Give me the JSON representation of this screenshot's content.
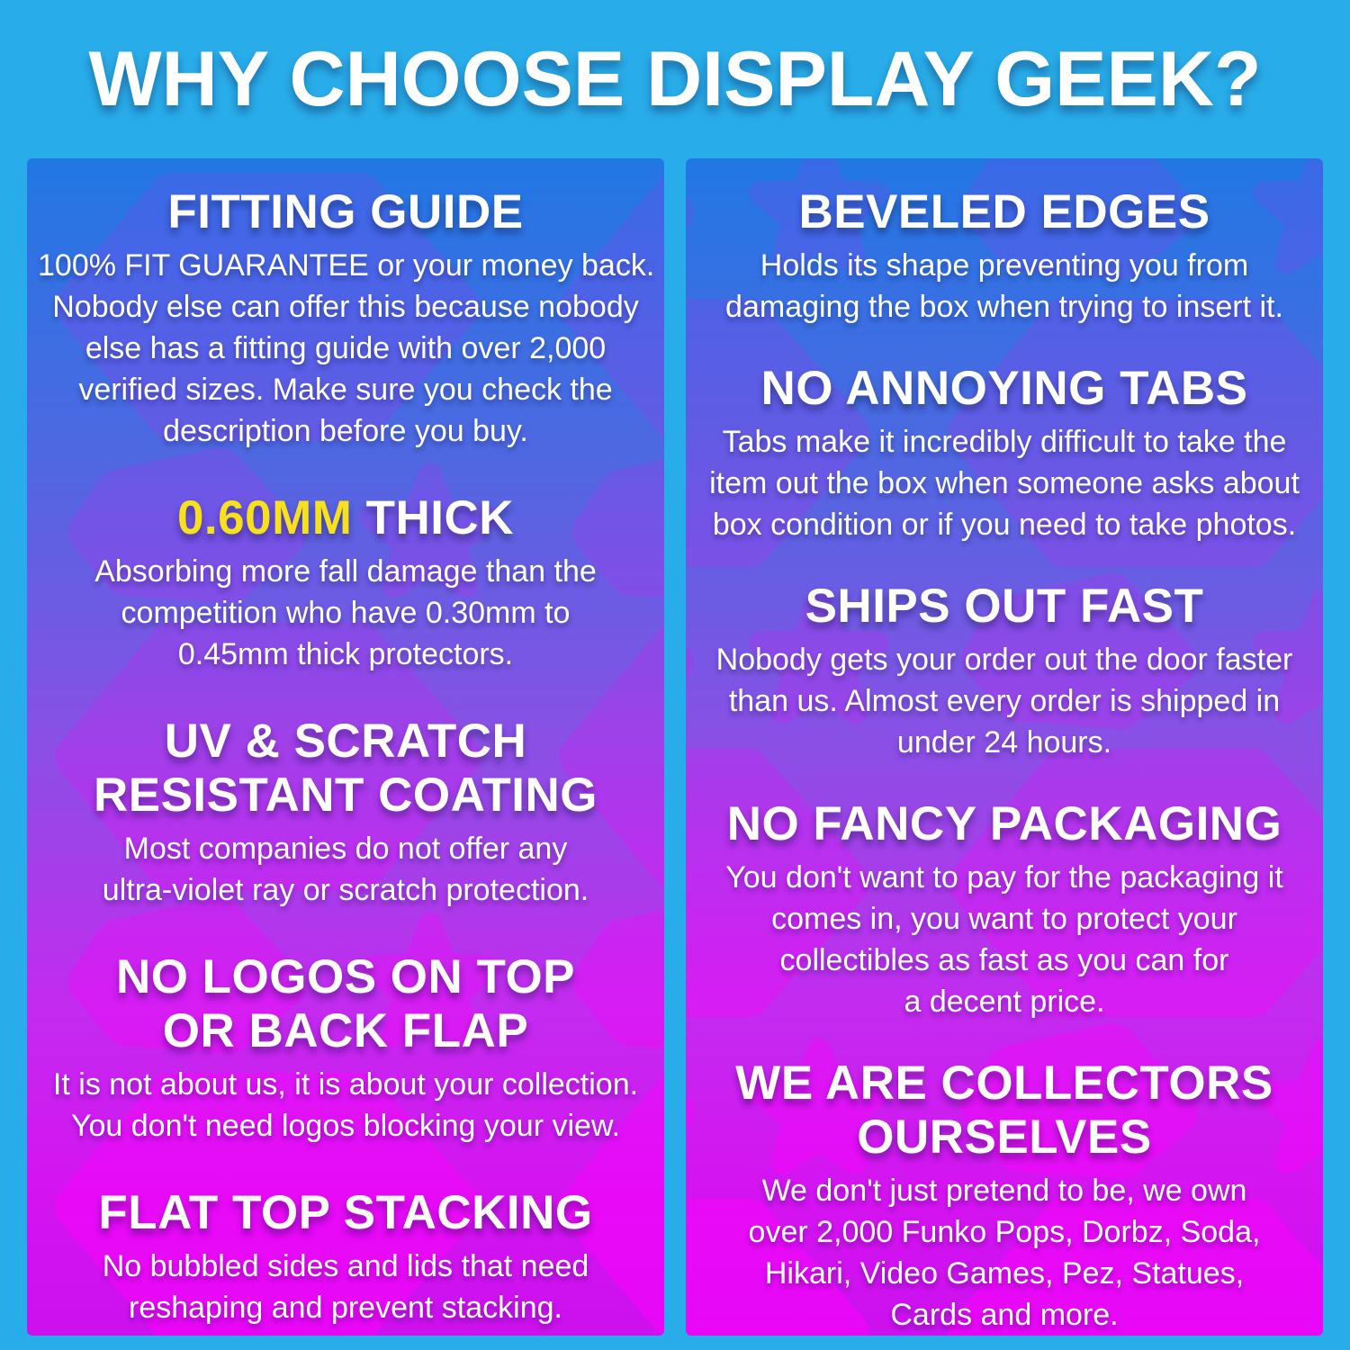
{
  "page_title": "WHY CHOOSE DISPLAY GEEK?",
  "colors": {
    "frame_background": "#29ADEA",
    "panel_gradient_top": "#2277E5",
    "panel_gradient_bottom": "#CB11EE",
    "text": "#FFFFFF",
    "highlight_yellow": "#F7E11E",
    "pattern_magenta": "#FF00FF"
  },
  "columns": [
    {
      "name": "left",
      "sections": [
        {
          "heading_lines": [
            "FITTING GUIDE"
          ],
          "body_lines": [
            "100% FIT GUARANTEE or your money back.",
            "Nobody else can offer this because nobody",
            "else has a fitting guide with over 2,000",
            "verified sizes. Make sure you check the",
            "description before you buy."
          ]
        },
        {
          "heading_parts": [
            {
              "text": "0.60MM",
              "highlight": true
            },
            {
              "text": " THICK",
              "highlight": false
            }
          ],
          "body_lines": [
            "Absorbing more fall damage than the",
            "competition who have 0.30mm to",
            "0.45mm thick protectors."
          ]
        },
        {
          "heading_lines": [
            "UV & SCRATCH",
            "RESISTANT COATING"
          ],
          "body_lines": [
            "Most companies do not offer any",
            "ultra-violet ray or scratch protection."
          ]
        },
        {
          "heading_lines": [
            "NO LOGOS ON TOP",
            "OR BACK FLAP"
          ],
          "body_lines": [
            "It is not about us, it is about your collection.",
            "You don't need logos blocking your view."
          ]
        },
        {
          "heading_lines": [
            "FLAT TOP STACKING"
          ],
          "body_lines": [
            "No bubbled sides and lids that need",
            "reshaping and prevent stacking."
          ]
        }
      ]
    },
    {
      "name": "right",
      "sections": [
        {
          "heading_lines": [
            "BEVELED EDGES"
          ],
          "body_lines": [
            "Holds its shape preventing you from",
            "damaging the box when trying to insert it."
          ]
        },
        {
          "heading_lines": [
            "NO ANNOYING TABS"
          ],
          "body_lines": [
            "Tabs make it incredibly difficult to take the",
            "item out the box when someone asks about",
            "box condition or if you need to take photos."
          ]
        },
        {
          "heading_lines": [
            "SHIPS OUT FAST"
          ],
          "body_lines": [
            "Nobody gets your order out the door faster",
            "than us. Almost every order is shipped in",
            "under 24 hours."
          ]
        },
        {
          "heading_lines": [
            "NO FANCY PACKAGING"
          ],
          "body_lines": [
            "You don't want to pay for the packaging it",
            "comes in, you want to protect your",
            "collectibles as fast as you can for",
            "a decent price."
          ]
        },
        {
          "heading_lines": [
            "WE ARE COLLECTORS",
            "OURSELVES"
          ],
          "body_lines": [
            "We don't just pretend to be, we own",
            "over 2,000 Funko Pops, Dorbz, Soda,",
            "Hikari, Video Games, Pez, Statues,",
            "Cards and more."
          ]
        }
      ]
    }
  ]
}
